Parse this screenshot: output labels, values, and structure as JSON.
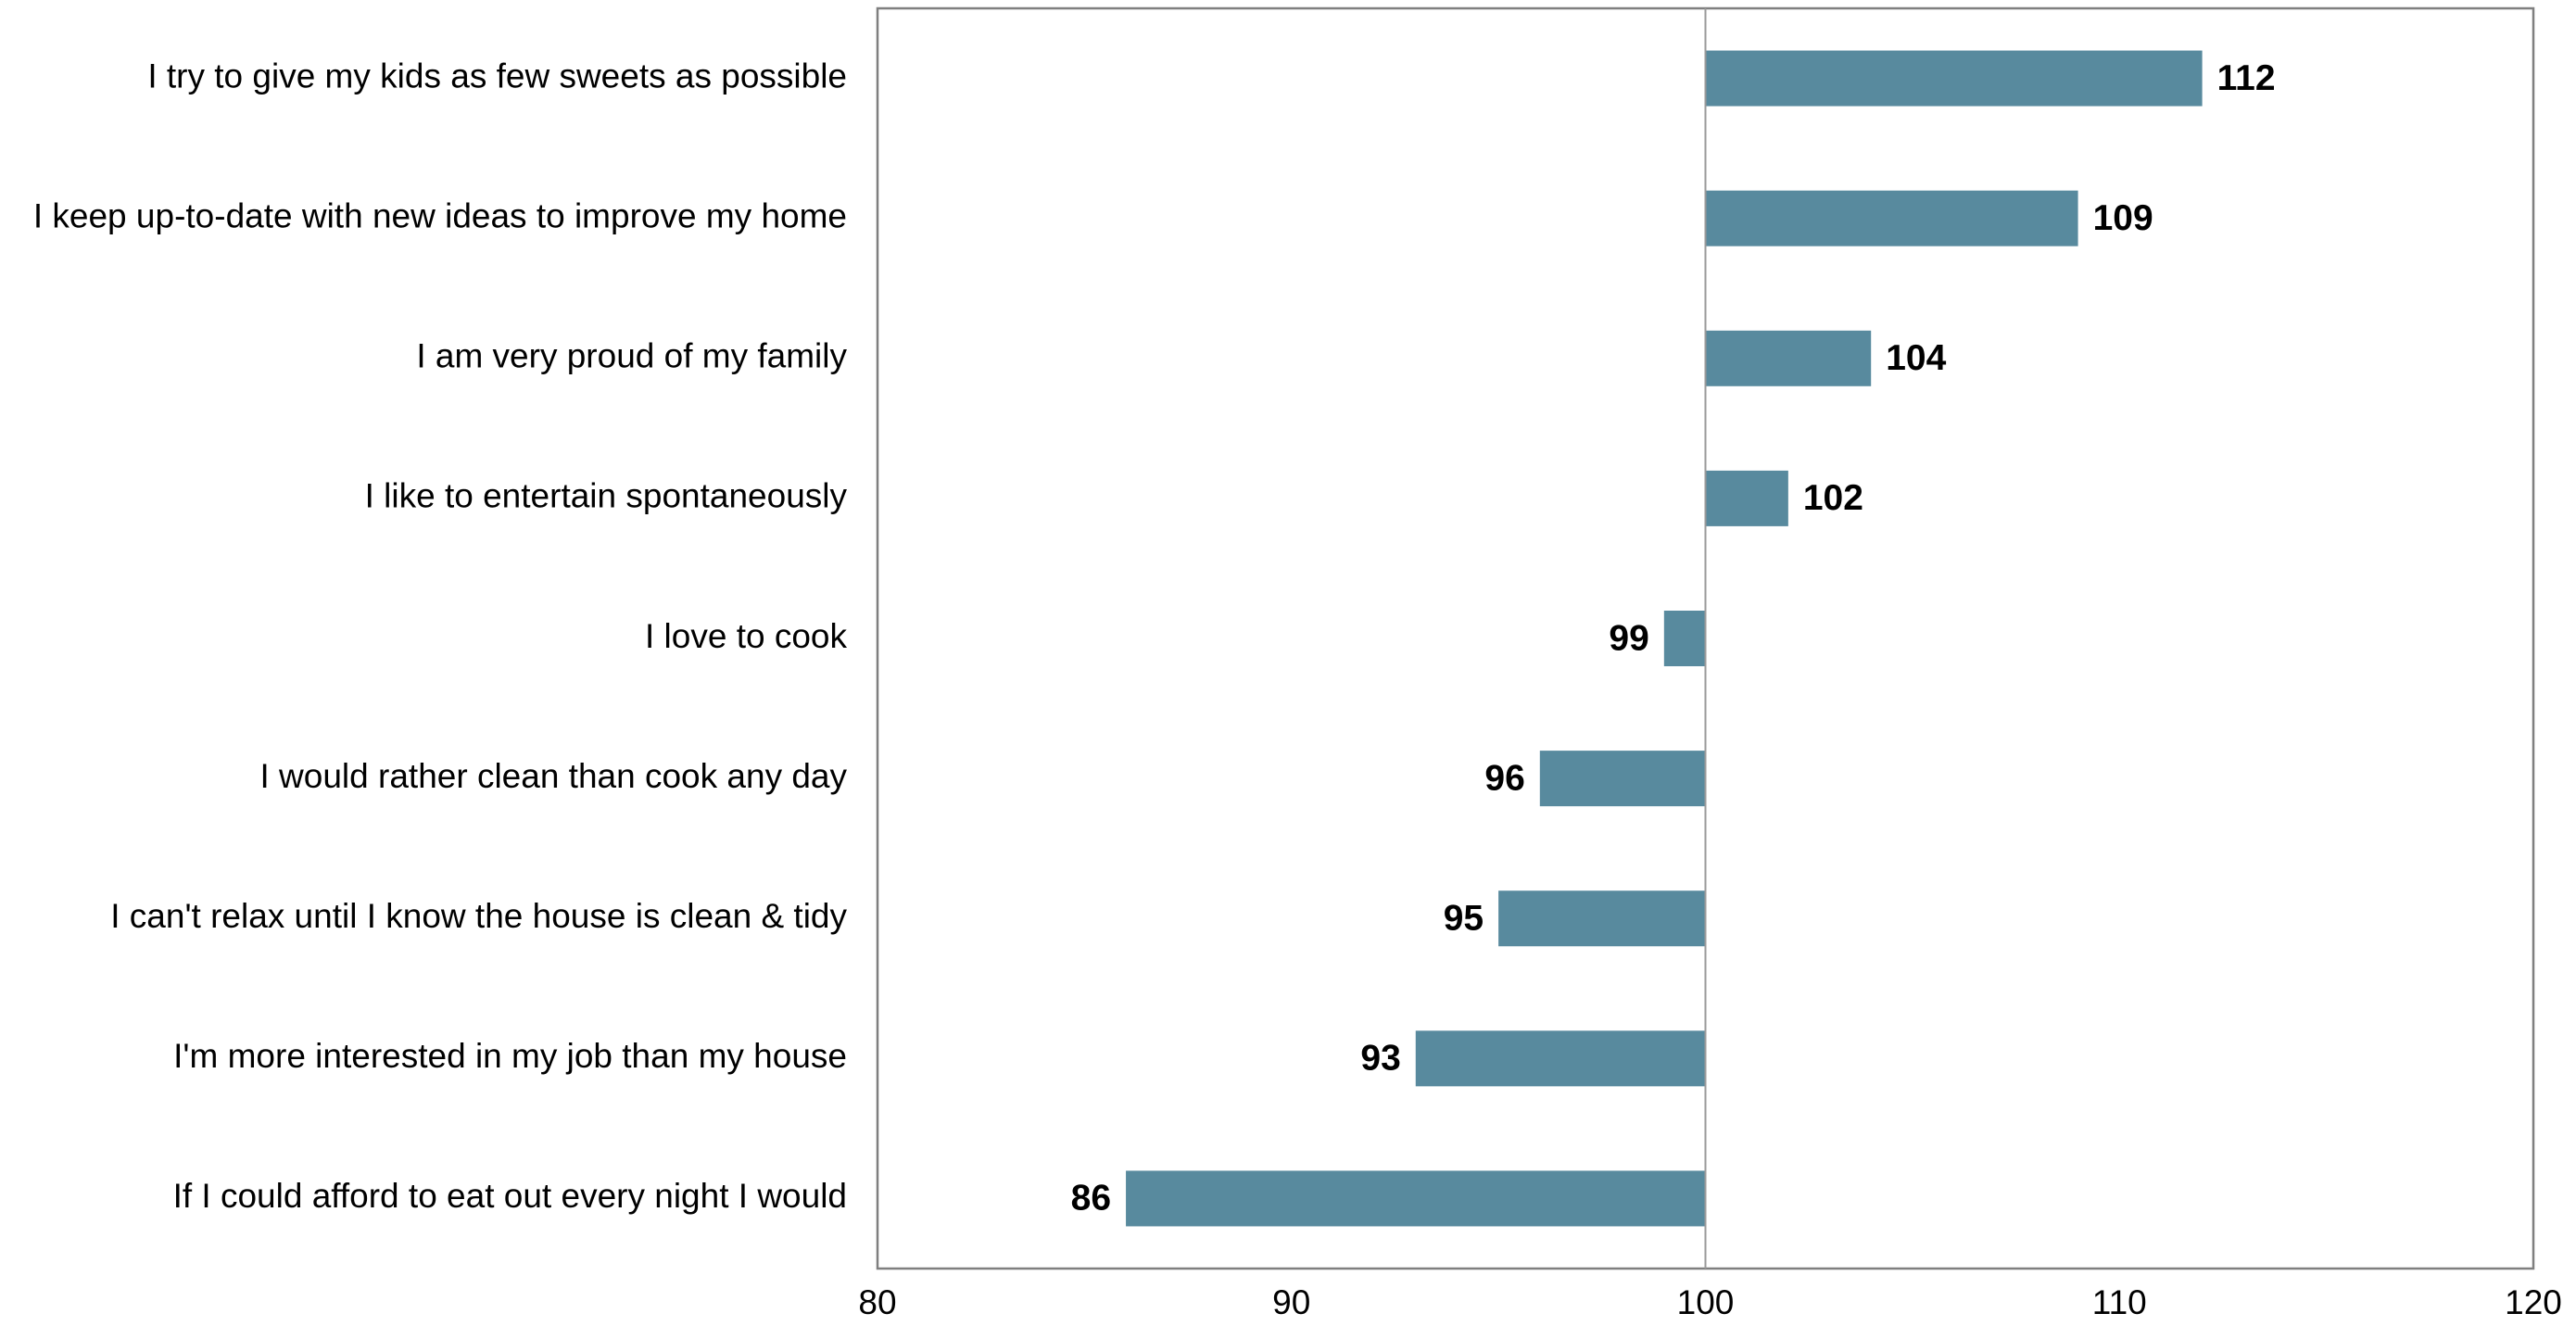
{
  "chart_data": {
    "type": "bar",
    "orientation": "horizontal",
    "categories": [
      "I try to give my kids as few sweets as possible",
      "I keep up-to-date with new ideas to improve my home",
      "I am very proud of my family",
      "I like to entertain spontaneously",
      "I love to cook",
      "I would rather clean than cook any day",
      "I can't relax until I know the house is clean & tidy",
      "I'm more interested in my job than my house",
      "If I could afford to eat out every night I would"
    ],
    "values": [
      112,
      109,
      104,
      102,
      99,
      96,
      95,
      93,
      86
    ],
    "baseline": 100,
    "xlim": [
      80,
      120
    ],
    "xticks": [
      80,
      90,
      100,
      110,
      120
    ],
    "title": "",
    "xlabel": "",
    "ylabel": "",
    "grid": false,
    "bar_color": "#588a9e"
  }
}
